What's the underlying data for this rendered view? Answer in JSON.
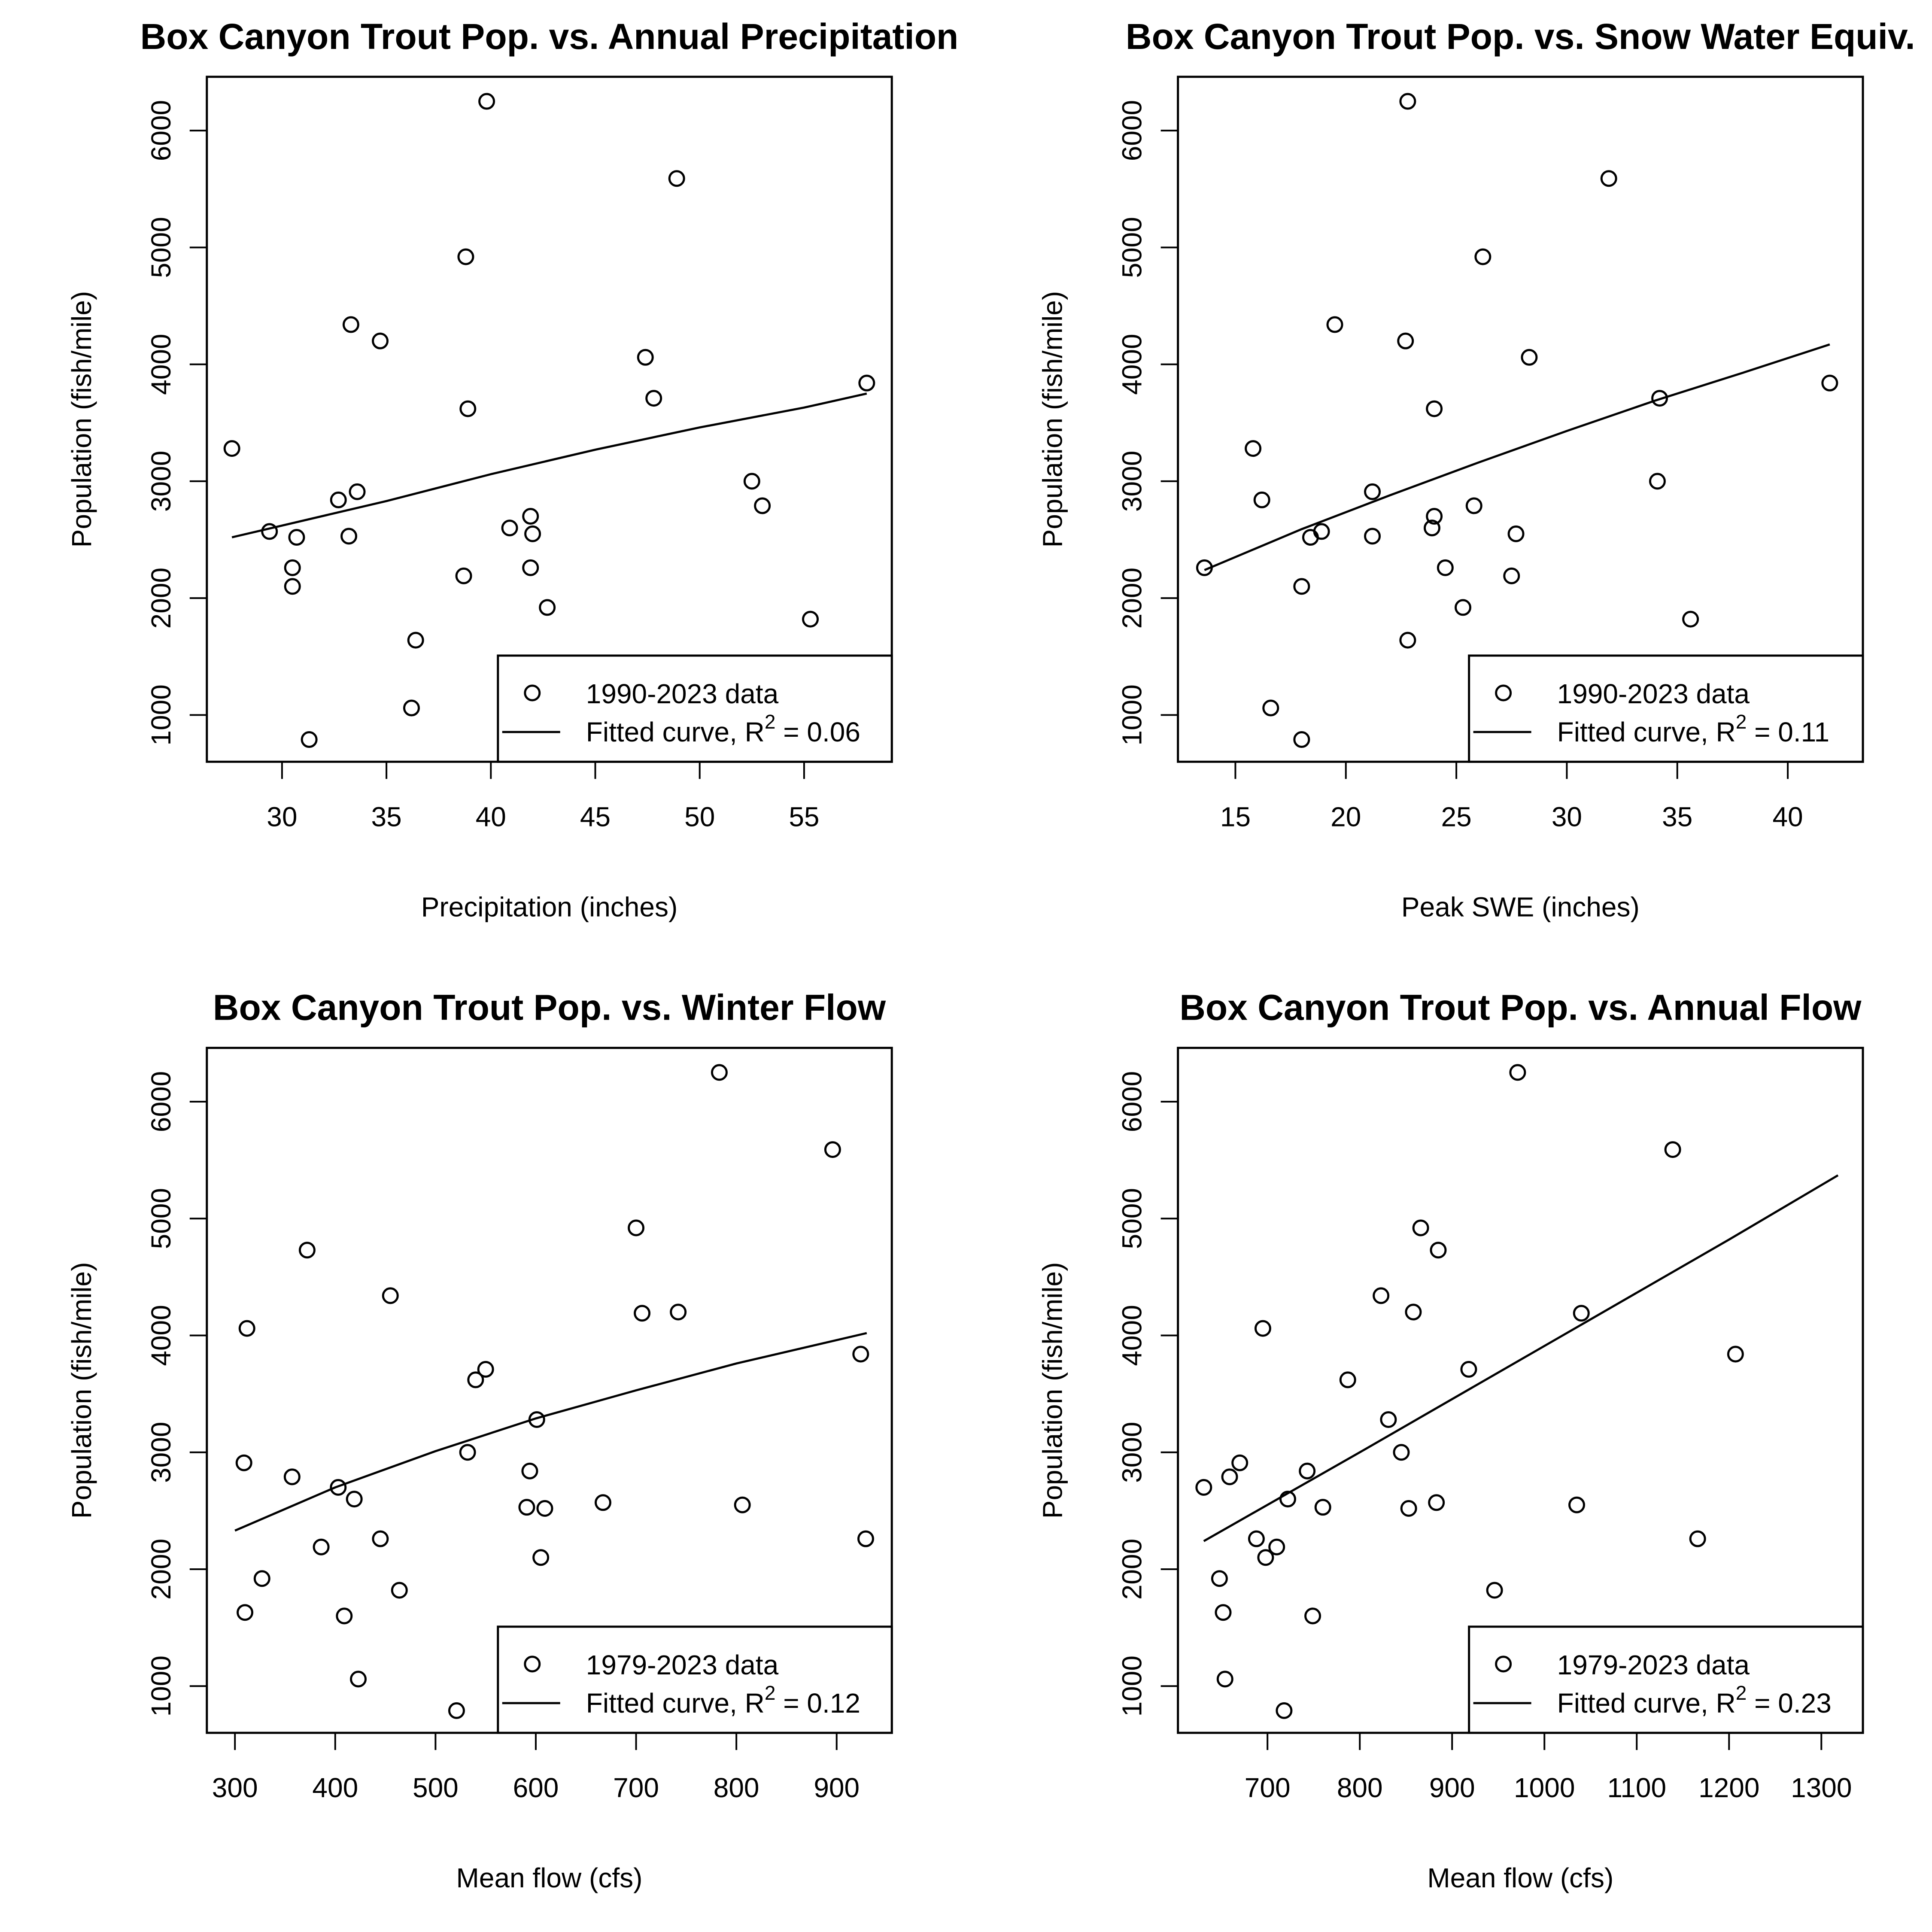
{
  "chart_data": [
    {
      "type": "scatter",
      "title": "Box Canyon Trout Pop. vs. Annual Precipitation",
      "xlabel": "Precipitation (inches)",
      "ylabel": "Population (fish/mile)",
      "xlim": [
        26.4,
        59.2
      ],
      "ylim": [
        600,
        6460
      ],
      "xticks": [
        30,
        35,
        40,
        45,
        50,
        55
      ],
      "yticks": [
        1000,
        2000,
        3000,
        4000,
        5000,
        6000
      ],
      "legend": {
        "position": "bottom-right",
        "points_label": "1990-2023 data",
        "line_label_prefix": "Fitted curve, R",
        "line_label_sup": "2",
        "line_label_suffix": " = 0.06"
      },
      "r_squared": 0.06,
      "points": [
        [
          27.6,
          3280
        ],
        [
          29.4,
          2570
        ],
        [
          30.5,
          2260
        ],
        [
          30.5,
          2100
        ],
        [
          30.7,
          2520
        ],
        [
          31.3,
          790
        ],
        [
          32.7,
          2840
        ],
        [
          33.2,
          2530
        ],
        [
          33.3,
          4340
        ],
        [
          33.6,
          2910
        ],
        [
          34.7,
          4200
        ],
        [
          36.2,
          1060
        ],
        [
          36.4,
          1640
        ],
        [
          38.7,
          2190
        ],
        [
          38.8,
          4920
        ],
        [
          38.9,
          3620
        ],
        [
          39.8,
          6250
        ],
        [
          40.9,
          2600
        ],
        [
          41.9,
          2700
        ],
        [
          41.9,
          2260
        ],
        [
          42.0,
          2550
        ],
        [
          42.7,
          1920
        ],
        [
          47.4,
          4060
        ],
        [
          47.8,
          3710
        ],
        [
          48.9,
          5590
        ],
        [
          52.5,
          3000
        ],
        [
          53.0,
          2790
        ],
        [
          55.3,
          1820
        ],
        [
          58.0,
          3840
        ]
      ],
      "fit": [
        [
          27.6,
          2520
        ],
        [
          35.0,
          2830
        ],
        [
          40.0,
          3060
        ],
        [
          45.0,
          3270
        ],
        [
          50.0,
          3460
        ],
        [
          55.0,
          3630
        ],
        [
          58.0,
          3750
        ]
      ]
    },
    {
      "type": "scatter",
      "title": "Box Canyon Trout Pop. vs. Snow Water Equiv.",
      "xlabel": "Peak SWE (inches)",
      "ylabel": "Population (fish/mile)",
      "xlim": [
        12.4,
        43.4
      ],
      "ylim": [
        600,
        6460
      ],
      "xticks": [
        15,
        20,
        25,
        30,
        35,
        40
      ],
      "yticks": [
        1000,
        2000,
        3000,
        4000,
        5000,
        6000
      ],
      "legend": {
        "position": "bottom-right",
        "points_label": "1990-2023 data",
        "line_label_prefix": "Fitted curve, R",
        "line_label_sup": "2",
        "line_label_suffix": " = 0.11"
      },
      "r_squared": 0.11,
      "points": [
        [
          13.6,
          2260
        ],
        [
          15.8,
          3280
        ],
        [
          16.2,
          2840
        ],
        [
          16.6,
          1060
        ],
        [
          18.0,
          790
        ],
        [
          18.0,
          2100
        ],
        [
          18.4,
          2520
        ],
        [
          18.9,
          2570
        ],
        [
          19.5,
          4340
        ],
        [
          21.2,
          2910
        ],
        [
          21.2,
          2530
        ],
        [
          22.7,
          4200
        ],
        [
          22.8,
          1640
        ],
        [
          22.8,
          6250
        ],
        [
          23.9,
          2600
        ],
        [
          24.0,
          3620
        ],
        [
          24.0,
          2700
        ],
        [
          24.5,
          2260
        ],
        [
          25.3,
          1920
        ],
        [
          25.8,
          2790
        ],
        [
          26.2,
          4920
        ],
        [
          27.5,
          2190
        ],
        [
          27.7,
          2550
        ],
        [
          28.3,
          4060
        ],
        [
          31.9,
          5590
        ],
        [
          34.1,
          3000
        ],
        [
          34.2,
          3710
        ],
        [
          35.6,
          1820
        ],
        [
          41.9,
          3840
        ]
      ],
      "fit": [
        [
          13.6,
          2240
        ],
        [
          18.0,
          2590
        ],
        [
          22.0,
          2880
        ],
        [
          26.0,
          3160
        ],
        [
          30.0,
          3430
        ],
        [
          34.0,
          3690
        ],
        [
          38.0,
          3930
        ],
        [
          41.9,
          4170
        ]
      ]
    },
    {
      "type": "scatter",
      "title": "Box Canyon Trout Pop. vs. Winter Flow",
      "xlabel": "Mean flow (cfs)",
      "ylabel": "Population (fish/mile)",
      "xlim": [
        272,
        955
      ],
      "ylim": [
        600,
        6460
      ],
      "xticks": [
        300,
        400,
        500,
        600,
        700,
        800,
        900
      ],
      "yticks": [
        1000,
        2000,
        3000,
        4000,
        5000,
        6000
      ],
      "legend": {
        "position": "bottom-right",
        "points_label": "1979-2023 data",
        "line_label_prefix": "Fitted curve, R",
        "line_label_sup": "2",
        "line_label_suffix": " = 0.12"
      },
      "r_squared": 0.12,
      "points": [
        [
          309,
          2910
        ],
        [
          310,
          1630
        ],
        [
          312,
          4060
        ],
        [
          327,
          1920
        ],
        [
          357,
          2790
        ],
        [
          372,
          4730
        ],
        [
          386,
          2190
        ],
        [
          403,
          2700
        ],
        [
          409,
          1600
        ],
        [
          419,
          2600
        ],
        [
          423,
          1060
        ],
        [
          445,
          2260
        ],
        [
          455,
          4340
        ],
        [
          464,
          1820
        ],
        [
          521,
          790
        ],
        [
          532,
          3000
        ],
        [
          540,
          3620
        ],
        [
          550,
          3710
        ],
        [
          591,
          2530
        ],
        [
          594,
          2840
        ],
        [
          601,
          3280
        ],
        [
          605,
          2100
        ],
        [
          609,
          2520
        ],
        [
          667,
          2570
        ],
        [
          700,
          4920
        ],
        [
          706,
          4190
        ],
        [
          742,
          4200
        ],
        [
          783,
          6250
        ],
        [
          806,
          2550
        ],
        [
          896,
          5590
        ],
        [
          924,
          3840
        ],
        [
          929,
          2260
        ]
      ],
      "fit": [
        [
          300,
          2330
        ],
        [
          400,
          2700
        ],
        [
          500,
          3010
        ],
        [
          600,
          3290
        ],
        [
          700,
          3530
        ],
        [
          800,
          3760
        ],
        [
          930,
          4020
        ]
      ]
    },
    {
      "type": "scatter",
      "title": "Box Canyon Trout Pop. vs. Annual Flow",
      "xlabel": "Mean flow (cfs)",
      "ylabel": "Population (fish/mile)",
      "xlim": [
        603,
        1345
      ],
      "ylim": [
        600,
        6460
      ],
      "xticks": [
        700,
        800,
        900,
        1000,
        1100,
        1200,
        1300
      ],
      "yticks": [
        1000,
        2000,
        3000,
        4000,
        5000,
        6000
      ],
      "legend": {
        "position": "bottom-right",
        "points_label": "1979-2023 data",
        "line_label_prefix": "Fitted curve, R",
        "line_label_sup": "2",
        "line_label_suffix": " = 0.23"
      },
      "r_squared": 0.23,
      "points": [
        [
          631,
          2700
        ],
        [
          648,
          1920
        ],
        [
          652,
          1630
        ],
        [
          654,
          1060
        ],
        [
          659,
          2790
        ],
        [
          670,
          2910
        ],
        [
          688,
          2260
        ],
        [
          695,
          4060
        ],
        [
          698,
          2100
        ],
        [
          710,
          2190
        ],
        [
          718,
          790
        ],
        [
          722,
          2600
        ],
        [
          743,
          2840
        ],
        [
          749,
          1600
        ],
        [
          760,
          2530
        ],
        [
          787,
          3620
        ],
        [
          823,
          4340
        ],
        [
          831,
          3280
        ],
        [
          845,
          3000
        ],
        [
          853,
          2520
        ],
        [
          858,
          4200
        ],
        [
          866,
          4920
        ],
        [
          883,
          2570
        ],
        [
          885,
          4730
        ],
        [
          918,
          3710
        ],
        [
          946,
          1820
        ],
        [
          971,
          6250
        ],
        [
          1035,
          2550
        ],
        [
          1040,
          4190
        ],
        [
          1139,
          5590
        ],
        [
          1166,
          2260
        ],
        [
          1207,
          3840
        ]
      ],
      "fit": [
        [
          631,
          2240
        ],
        [
          800,
          3000
        ],
        [
          1000,
          3910
        ],
        [
          1200,
          4820
        ],
        [
          1318,
          5370
        ]
      ]
    }
  ]
}
